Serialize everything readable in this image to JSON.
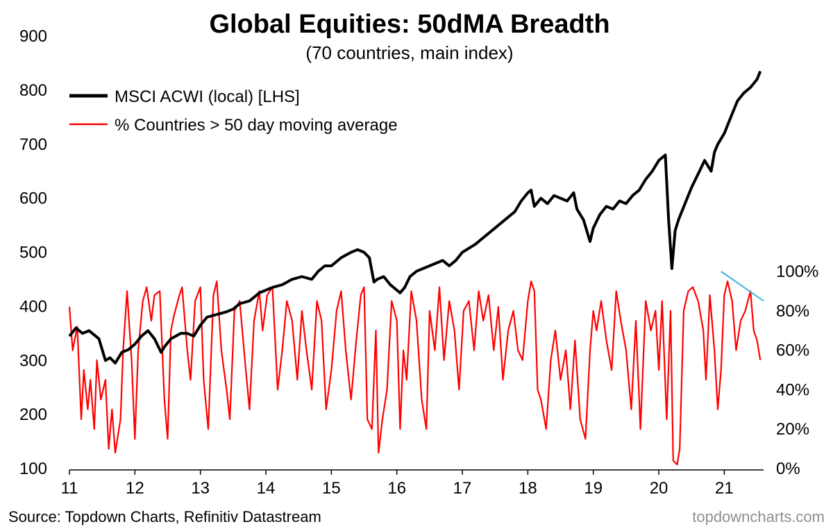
{
  "chart_data": {
    "type": "line",
    "title": "Global Equities: 50dMA Breadth",
    "subtitle": "(70 countries, main index)",
    "source": "Source: Topdown Charts, Refinitiv Datastream",
    "watermark": "topdowncharts.com",
    "x_tick_labels": [
      "11",
      "12",
      "13",
      "14",
      "15",
      "16",
      "17",
      "18",
      "19",
      "20",
      "21"
    ],
    "xlim": [
      2011,
      2021.6
    ],
    "left_axis": {
      "ticks": [
        "100",
        "200",
        "300",
        "400",
        "500",
        "600",
        "700",
        "800",
        "900"
      ],
      "ylim": [
        100,
        900
      ]
    },
    "right_axis": {
      "ticks": [
        "0%",
        "20%",
        "40%",
        "60%",
        "80%",
        "100%"
      ],
      "ylim": [
        0,
        100
      ]
    },
    "legend_position": "top-left",
    "series": [
      {
        "name": "MSCI ACWI (local) [LHS]",
        "axis": "left",
        "color": "#000000",
        "x": [
          2011.0,
          2011.1,
          2011.2,
          2011.3,
          2011.45,
          2011.55,
          2011.62,
          2011.7,
          2011.8,
          2011.9,
          2012.0,
          2012.1,
          2012.2,
          2012.3,
          2012.4,
          2012.45,
          2012.55,
          2012.7,
          2012.8,
          2012.9,
          2013.0,
          2013.1,
          2013.25,
          2013.4,
          2013.5,
          2013.6,
          2013.75,
          2013.9,
          2014.0,
          2014.1,
          2014.25,
          2014.4,
          2014.55,
          2014.7,
          2014.8,
          2014.9,
          2015.0,
          2015.15,
          2015.3,
          2015.4,
          2015.5,
          2015.58,
          2015.65,
          2015.7,
          2015.8,
          2015.9,
          2016.0,
          2016.05,
          2016.12,
          2016.2,
          2016.3,
          2016.4,
          2016.5,
          2016.6,
          2016.7,
          2016.8,
          2016.9,
          2017.0,
          2017.2,
          2017.4,
          2017.6,
          2017.8,
          2017.9,
          2018.0,
          2018.05,
          2018.1,
          2018.2,
          2018.3,
          2018.4,
          2018.5,
          2018.6,
          2018.7,
          2018.75,
          2018.85,
          2018.95,
          2019.0,
          2019.1,
          2019.2,
          2019.3,
          2019.4,
          2019.5,
          2019.6,
          2019.7,
          2019.8,
          2019.9,
          2020.0,
          2020.1,
          2020.15,
          2020.2,
          2020.25,
          2020.3,
          2020.4,
          2020.5,
          2020.6,
          2020.7,
          2020.8,
          2020.85,
          2020.9,
          2021.0,
          2021.1,
          2021.2,
          2021.3,
          2021.4,
          2021.5,
          2021.55
        ],
        "values": [
          345,
          360,
          350,
          355,
          340,
          300,
          305,
          295,
          315,
          320,
          330,
          345,
          355,
          340,
          315,
          325,
          340,
          350,
          350,
          345,
          365,
          380,
          385,
          390,
          395,
          405,
          410,
          425,
          430,
          435,
          440,
          450,
          455,
          450,
          465,
          475,
          475,
          490,
          500,
          505,
          500,
          490,
          445,
          450,
          455,
          440,
          430,
          425,
          435,
          455,
          465,
          470,
          475,
          480,
          485,
          475,
          485,
          500,
          515,
          535,
          555,
          575,
          595,
          610,
          615,
          585,
          600,
          590,
          605,
          600,
          595,
          610,
          580,
          560,
          520,
          545,
          570,
          585,
          580,
          595,
          590,
          605,
          615,
          635,
          650,
          670,
          680,
          560,
          470,
          540,
          560,
          590,
          620,
          645,
          670,
          650,
          685,
          700,
          720,
          750,
          780,
          795,
          805,
          820,
          835
        ]
      },
      {
        "name": "% Countries > 50 day moving average",
        "axis": "right",
        "color": "#ff0000",
        "x": [
          2011.0,
          2011.05,
          2011.12,
          2011.18,
          2011.22,
          2011.28,
          2011.32,
          2011.38,
          2011.42,
          2011.48,
          2011.55,
          2011.6,
          2011.65,
          2011.7,
          2011.78,
          2011.82,
          2011.88,
          2011.95,
          2012.0,
          2012.05,
          2012.12,
          2012.18,
          2012.25,
          2012.3,
          2012.38,
          2012.45,
          2012.5,
          2012.55,
          2012.6,
          2012.68,
          2012.72,
          2012.8,
          2012.85,
          2012.92,
          2013.0,
          2013.05,
          2013.12,
          2013.2,
          2013.25,
          2013.32,
          2013.4,
          2013.45,
          2013.52,
          2013.6,
          2013.68,
          2013.75,
          2013.82,
          2013.9,
          2013.95,
          2014.02,
          2014.1,
          2014.18,
          2014.25,
          2014.32,
          2014.4,
          2014.48,
          2014.55,
          2014.62,
          2014.7,
          2014.78,
          2014.85,
          2014.92,
          2015.0,
          2015.08,
          2015.15,
          2015.22,
          2015.3,
          2015.38,
          2015.45,
          2015.5,
          2015.55,
          2015.62,
          2015.68,
          2015.72,
          2015.78,
          2015.85,
          2015.92,
          2016.0,
          2016.05,
          2016.1,
          2016.15,
          2016.22,
          2016.3,
          2016.38,
          2016.45,
          2016.5,
          2016.58,
          2016.65,
          2016.72,
          2016.8,
          2016.88,
          2016.95,
          2017.02,
          2017.1,
          2017.18,
          2017.25,
          2017.32,
          2017.4,
          2017.48,
          2017.55,
          2017.62,
          2017.7,
          2017.78,
          2017.85,
          2017.92,
          2018.0,
          2018.05,
          2018.1,
          2018.15,
          2018.2,
          2018.28,
          2018.35,
          2018.42,
          2018.5,
          2018.58,
          2018.65,
          2018.72,
          2018.8,
          2018.88,
          2018.95,
          2019.0,
          2019.05,
          2019.12,
          2019.2,
          2019.28,
          2019.35,
          2019.42,
          2019.5,
          2019.58,
          2019.65,
          2019.72,
          2019.8,
          2019.88,
          2019.95,
          2020.0,
          2020.05,
          2020.12,
          2020.18,
          2020.22,
          2020.28,
          2020.32,
          2020.38,
          2020.45,
          2020.52,
          2020.6,
          2020.68,
          2020.72,
          2020.78,
          2020.85,
          2020.9,
          2020.95,
          2021.0,
          2021.05,
          2021.12,
          2021.18,
          2021.25,
          2021.32,
          2021.4,
          2021.45,
          2021.5,
          2021.55
        ],
        "values": [
          82,
          60,
          72,
          25,
          50,
          30,
          45,
          20,
          55,
          35,
          45,
          10,
          30,
          8,
          25,
          60,
          90,
          55,
          15,
          60,
          85,
          92,
          75,
          88,
          90,
          35,
          15,
          70,
          78,
          88,
          92,
          60,
          45,
          85,
          92,
          45,
          20,
          88,
          95,
          60,
          40,
          25,
          80,
          85,
          55,
          30,
          75,
          90,
          70,
          88,
          92,
          40,
          60,
          85,
          75,
          45,
          80,
          60,
          40,
          85,
          75,
          30,
          50,
          80,
          90,
          60,
          35,
          65,
          88,
          92,
          25,
          20,
          70,
          8,
          25,
          40,
          85,
          75,
          20,
          60,
          45,
          90,
          75,
          35,
          20,
          80,
          60,
          92,
          55,
          85,
          70,
          40,
          80,
          85,
          60,
          90,
          75,
          88,
          60,
          82,
          45,
          70,
          80,
          60,
          55,
          85,
          95,
          90,
          40,
          35,
          20,
          55,
          70,
          45,
          60,
          30,
          65,
          25,
          15,
          60,
          80,
          70,
          85,
          65,
          50,
          90,
          75,
          60,
          30,
          75,
          20,
          85,
          70,
          80,
          50,
          85,
          25,
          80,
          4,
          2,
          10,
          80,
          90,
          92,
          85,
          70,
          45,
          88,
          60,
          30,
          50,
          88,
          95,
          85,
          60,
          75,
          80,
          90,
          70,
          65,
          55
        ]
      }
    ],
    "trendline": {
      "axis": "right",
      "color": "#3cb4dc",
      "x": [
        2020.95,
        2021.6
      ],
      "values": [
        100,
        85
      ]
    }
  }
}
